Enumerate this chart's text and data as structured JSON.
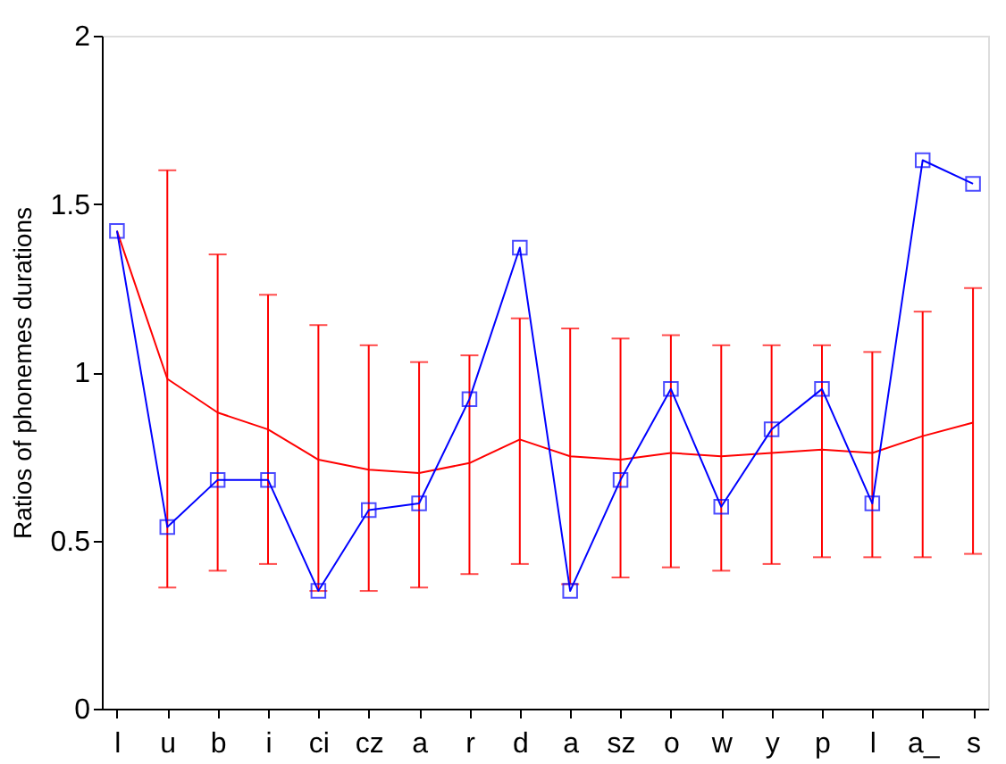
{
  "chart_data": {
    "type": "line",
    "ylabel": "Ratios of phonemes durations",
    "categories": [
      "l",
      "u",
      "b",
      "i",
      "ci",
      "cz",
      "a",
      "r",
      "d",
      "a",
      "sz",
      "o",
      "w",
      "y",
      "p",
      "l",
      "a_",
      "s"
    ],
    "ylim": [
      0,
      2
    ],
    "yticks": [
      0,
      0.5,
      1,
      1.5,
      2
    ],
    "grid": false,
    "series": [
      {
        "color": "#ff0000",
        "marker": "none",
        "values": [
          1.42,
          0.98,
          0.88,
          0.83,
          0.74,
          0.71,
          0.7,
          0.73,
          0.8,
          0.75,
          0.74,
          0.76,
          0.75,
          0.76,
          0.77,
          0.76,
          0.81,
          0.85
        ],
        "errors": [
          null,
          [
            0.36,
            1.6
          ],
          [
            0.41,
            1.35
          ],
          [
            0.43,
            1.23
          ],
          [
            0.35,
            1.14
          ],
          [
            0.35,
            1.08
          ],
          [
            0.36,
            1.03
          ],
          [
            0.4,
            1.05
          ],
          [
            0.43,
            1.16
          ],
          [
            0.37,
            1.13
          ],
          [
            0.39,
            1.1
          ],
          [
            0.42,
            1.11
          ],
          [
            0.41,
            1.08
          ],
          [
            0.43,
            1.08
          ],
          [
            0.45,
            1.08
          ],
          [
            0.45,
            1.06
          ],
          [
            0.45,
            1.18
          ],
          [
            0.46,
            1.25
          ]
        ]
      },
      {
        "color": "#0000ff",
        "marker": "square",
        "values": [
          1.42,
          0.54,
          0.68,
          0.68,
          0.35,
          0.59,
          0.61,
          0.92,
          1.37,
          0.35,
          0.68,
          0.95,
          0.6,
          0.83,
          0.95,
          0.61,
          1.63,
          1.56
        ]
      }
    ]
  }
}
